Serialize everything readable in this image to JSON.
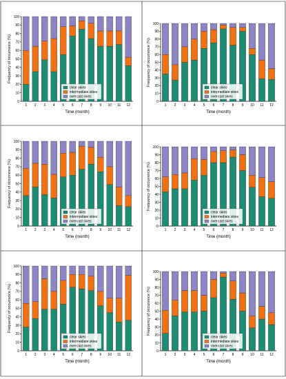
{
  "colors": {
    "clear": "#1e8c73",
    "intermediate": "#f07114",
    "overcast": "#8c84c4",
    "axis": "#000000"
  },
  "chart_data": [
    {
      "type": "bar",
      "stacked": true,
      "panel": "top-left",
      "xlabel": "Time (month)",
      "ylabel": "Frequency of occurrence (%)",
      "categories": [
        "1",
        "2",
        "3",
        "4",
        "5",
        "6",
        "7",
        "8",
        "9",
        "10",
        "11",
        "12"
      ],
      "yticks": [
        "0",
        "10",
        "20",
        "30",
        "40",
        "50",
        "60",
        "70",
        "80",
        "90",
        "100"
      ],
      "ylim": [
        0,
        100
      ],
      "legend": [
        "clear skies",
        "intermediate skies",
        "overcast skies"
      ],
      "legend_position": "bottom-center",
      "series": [
        {
          "name": "clear skies",
          "values": [
            20,
            35,
            49,
            35,
            55,
            77,
            85,
            74,
            65,
            65,
            67,
            42
          ]
        },
        {
          "name": "intermediate skies",
          "values": [
            40,
            30,
            22,
            39,
            33,
            12,
            10,
            18,
            18,
            18,
            16,
            10
          ]
        },
        {
          "name": "overcast skies",
          "values": [
            40,
            35,
            29,
            26,
            12,
            11,
            5,
            8,
            17,
            17,
            17,
            48
          ]
        }
      ]
    },
    {
      "type": "bar",
      "stacked": true,
      "panel": "top-right",
      "xlabel": "Time (month)",
      "ylabel": "Frequency of occurrence (%)",
      "categories": [
        "1",
        "2",
        "3",
        "4",
        "5",
        "6",
        "7",
        "8",
        "9",
        "10",
        "11",
        "12"
      ],
      "yticks": [
        "0",
        "10",
        "20",
        "30",
        "40",
        "50",
        "60",
        "70",
        "80",
        "90",
        "100"
      ],
      "ylim": [
        0,
        100
      ],
      "legend": [
        "clear skies",
        "intermediate skies",
        "overcast skies"
      ],
      "legend_position": "bottom-center",
      "series": [
        {
          "name": "clear skies",
          "values": [
            35,
            27,
            50,
            53,
            68,
            75,
            93,
            72,
            90,
            60,
            29,
            28
          ]
        },
        {
          "name": "intermediate skies",
          "values": [
            25,
            20,
            20,
            27,
            22,
            17,
            5,
            23,
            5,
            8,
            24,
            14
          ]
        },
        {
          "name": "overcast skies",
          "values": [
            40,
            53,
            30,
            20,
            10,
            8,
            2,
            5,
            5,
            32,
            47,
            58
          ]
        }
      ]
    },
    {
      "type": "bar",
      "stacked": true,
      "panel": "middle-left",
      "xlabel": "Time (month)",
      "ylabel": "Frequency of occurrence (%)",
      "categories": [
        "1",
        "2",
        "3",
        "4",
        "5",
        "6",
        "7",
        "8",
        "9",
        "10",
        "11",
        "12"
      ],
      "yticks": [
        "0",
        "10",
        "20",
        "30",
        "40",
        "50",
        "60",
        "70",
        "80",
        "90",
        "100"
      ],
      "ylim": [
        0,
        100
      ],
      "legend": [
        "clear skies",
        "intermediate skies",
        "overcast skies"
      ],
      "legend_position": "bottom-center",
      "series": [
        {
          "name": "clear skies",
          "values": [
            36,
            46,
            37,
            33,
            58,
            60,
            67,
            73,
            64,
            49,
            24,
            23
          ]
        },
        {
          "name": "intermediate skies",
          "values": [
            32,
            28,
            36,
            28,
            28,
            27,
            27,
            20,
            17,
            21,
            22,
            13
          ]
        },
        {
          "name": "overcast skies",
          "values": [
            32,
            26,
            27,
            39,
            14,
            13,
            6,
            7,
            19,
            30,
            54,
            64
          ]
        }
      ]
    },
    {
      "type": "bar",
      "stacked": true,
      "panel": "middle-right",
      "xlabel": "Time (month)",
      "ylabel": "Frequency of occurrence (%)",
      "categories": [
        "1",
        "2",
        "3",
        "4",
        "5",
        "6",
        "7",
        "8",
        "9",
        "10",
        "11",
        "12"
      ],
      "yticks": [
        "0",
        "10",
        "20",
        "30",
        "40",
        "50",
        "60",
        "70",
        "80",
        "90",
        "100"
      ],
      "ylim": [
        0,
        100
      ],
      "legend": [
        "clear skies",
        "intermediate skies",
        "overcast skies"
      ],
      "legend_position": "bottom-center",
      "series": [
        {
          "name": "clear skies",
          "values": [
            43,
            47,
            47,
            58,
            64,
            80,
            80,
            87,
            70,
            49,
            37,
            35
          ]
        },
        {
          "name": "intermediate skies",
          "values": [
            19,
            18,
            20,
            27,
            20,
            14,
            15,
            9,
            20,
            15,
            24,
            21
          ]
        },
        {
          "name": "overcast skies",
          "values": [
            38,
            35,
            33,
            15,
            16,
            6,
            5,
            4,
            10,
            36,
            39,
            44
          ]
        }
      ]
    },
    {
      "type": "bar",
      "stacked": true,
      "panel": "bottom-left",
      "xlabel": "Time (month)",
      "ylabel": "Frequency of occurrence (%)",
      "categories": [
        "1",
        "2",
        "3",
        "4",
        "5",
        "6",
        "7",
        "8",
        "9",
        "10",
        "11",
        "12"
      ],
      "yticks": [
        "0",
        "10",
        "20",
        "30",
        "40",
        "50",
        "60",
        "70",
        "80",
        "90",
        "100"
      ],
      "ylim": [
        0,
        100
      ],
      "legend": [
        "clear skies",
        "intermediate skies",
        "overcast skies"
      ],
      "legend_position": "bottom-center",
      "series": [
        {
          "name": "clear skies",
          "values": [
            28,
            38,
            49,
            49,
            55,
            75,
            73,
            71,
            53,
            45,
            34,
            36
          ]
        },
        {
          "name": "intermediate skies",
          "values": [
            28,
            20,
            36,
            21,
            28,
            15,
            17,
            17,
            17,
            17,
            28,
            53
          ]
        },
        {
          "name": "overcast skies",
          "values": [
            44,
            42,
            15,
            30,
            17,
            10,
            10,
            12,
            30,
            38,
            38,
            11
          ]
        }
      ]
    },
    {
      "type": "bar",
      "stacked": true,
      "panel": "bottom-right",
      "xlabel": "Time (month)",
      "ylabel": "Frequency of occurrence (%)",
      "categories": [
        "1",
        "2",
        "3",
        "4",
        "5",
        "6",
        "7",
        "8",
        "9",
        "10",
        "11",
        "12"
      ],
      "yticks": [
        "0",
        "10",
        "20",
        "30",
        "40",
        "50",
        "60",
        "70",
        "80",
        "90",
        "100"
      ],
      "ylim": [
        0,
        100
      ],
      "legend": [
        "clear skies",
        "intermediate skies",
        "overcast skies"
      ],
      "legend_position": "bottom-center",
      "series": [
        {
          "name": "clear skies",
          "values": [
            22,
            44,
            49,
            49,
            50,
            67,
            93,
            65,
            50,
            29,
            40,
            33
          ]
        },
        {
          "name": "intermediate skies",
          "values": [
            29,
            20,
            27,
            27,
            20,
            23,
            5,
            23,
            23,
            15,
            16,
            15
          ]
        },
        {
          "name": "overcast skies",
          "values": [
            49,
            36,
            24,
            24,
            30,
            10,
            2,
            12,
            27,
            56,
            44,
            52
          ]
        }
      ]
    }
  ]
}
